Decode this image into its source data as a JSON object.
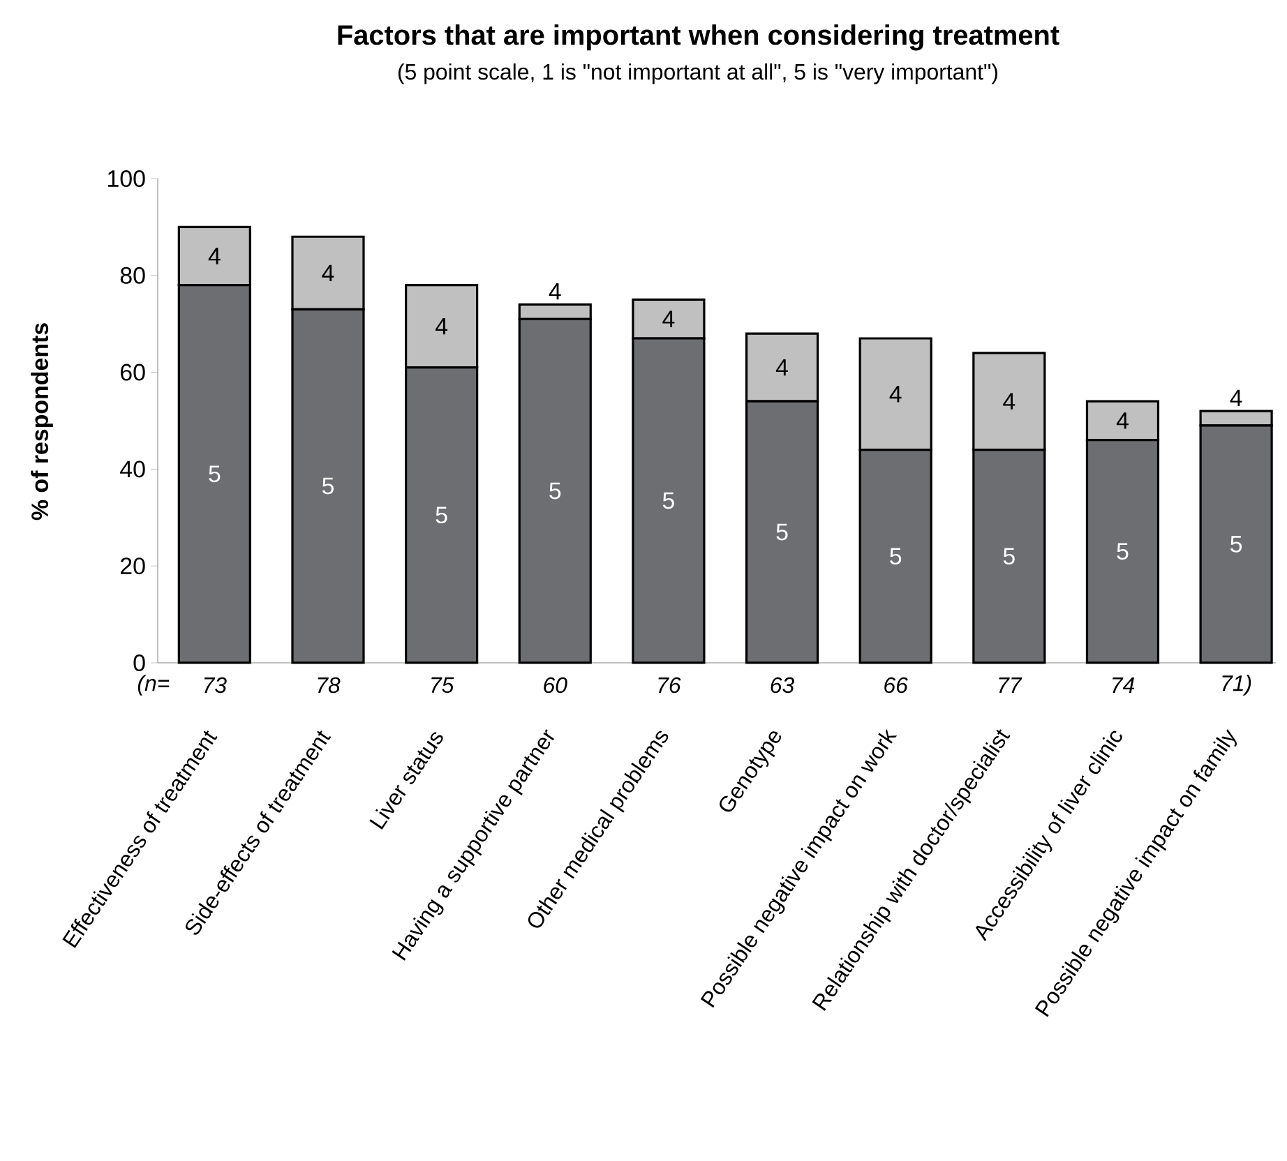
{
  "chart_data": {
    "type": "bar",
    "stacked": true,
    "title": "Factors that are important when considering treatment",
    "subtitle": "(5 point scale, 1 is \"not important at all\", 5 is \"very important\")",
    "ylabel": "% of respondents",
    "categories": [
      "Effectiveness of treatment",
      "Side-effects of treatment",
      "Liver status",
      "Having a supportive partner",
      "Other medical problems",
      "Genotype",
      "Possible negative impact on work",
      "Relationship with doctor/specialist",
      "Accessibility of liver clinic",
      "Possible negative impact on family"
    ],
    "series": [
      {
        "name": "5",
        "color": "#6d6e71",
        "values": [
          78,
          73,
          61,
          71,
          67,
          54,
          44,
          44,
          46,
          49
        ]
      },
      {
        "name": "4",
        "color": "#c0c0c0",
        "values": [
          12,
          15,
          17,
          3,
          8,
          14,
          23,
          20,
          8,
          3
        ]
      }
    ],
    "ylim": [
      0,
      100
    ],
    "yticks": [
      0,
      20,
      40,
      60,
      80,
      100
    ],
    "annotations": [
      "(n=",
      "73",
      "78",
      "75",
      "60",
      "76",
      "63",
      "66",
      "77",
      "74",
      "71)"
    ]
  }
}
